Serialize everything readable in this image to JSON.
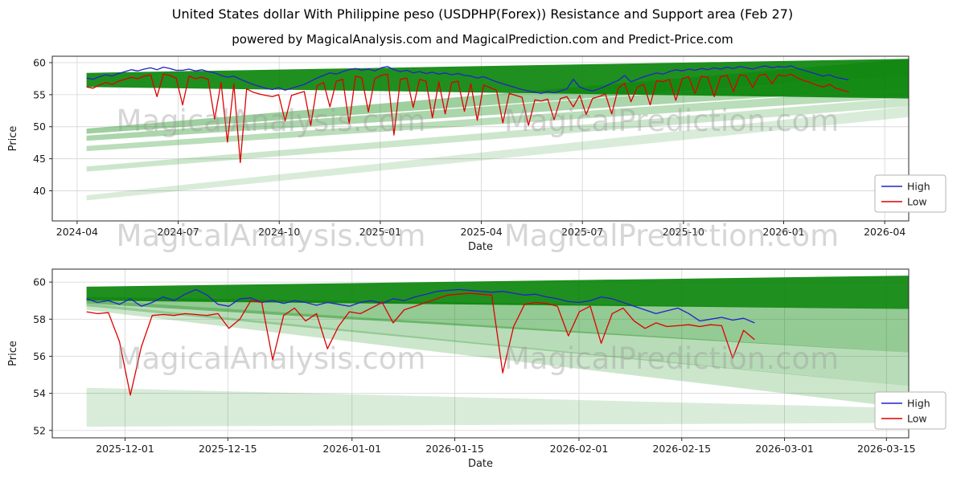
{
  "title": "United States dollar With Philippine peso (USDPHP(Forex)) Resistance and Support area (Feb 27)",
  "subtitle": "powered by MagicalAnalysis.com and MagicalPrediction.com and Predict-Price.com",
  "watermarks": {
    "left": "MagicalAnalysis.com",
    "right": "MagicalPrediction.com"
  },
  "colors": {
    "high": "#2222cc",
    "low": "#dd0000",
    "band": "#008000",
    "grid": "#d9d9d9",
    "frame": "#2a2a2a"
  },
  "chart_data": [
    {
      "type": "line",
      "xlabel": "Date",
      "ylabel": "Price",
      "ylim": [
        35.3,
        61.0
      ],
      "y_ticks": [
        40,
        45,
        50,
        55,
        60
      ],
      "x_ticks": [
        {
          "f": 0.029,
          "label": "2024-04"
        },
        {
          "f": 0.147,
          "label": "2024-07"
        },
        {
          "f": 0.265,
          "label": "2024-10"
        },
        {
          "f": 0.383,
          "label": "2025-01"
        },
        {
          "f": 0.501,
          "label": "2025-04"
        },
        {
          "f": 0.619,
          "label": "2025-07"
        },
        {
          "f": 0.737,
          "label": "2025-10"
        },
        {
          "f": 0.854,
          "label": "2026-01"
        },
        {
          "f": 0.972,
          "label": "2026-04"
        }
      ],
      "legend_position": "lower right",
      "bands": [
        {
          "points": [
            [
              0.04,
              38.5
            ],
            [
              0.04,
              39.3
            ],
            [
              1.0,
              53.2
            ],
            [
              1.0,
              51.5
            ]
          ],
          "opacity": 0.15
        },
        {
          "points": [
            [
              0.04,
              43.0
            ],
            [
              0.04,
              43.8
            ],
            [
              1.0,
              54.6
            ],
            [
              1.0,
              53.2
            ]
          ],
          "opacity": 0.2
        },
        {
          "points": [
            [
              0.04,
              46.2
            ],
            [
              0.04,
              47.0
            ],
            [
              1.0,
              56.0
            ],
            [
              1.0,
              54.6
            ]
          ],
          "opacity": 0.27
        },
        {
          "points": [
            [
              0.04,
              47.8
            ],
            [
              0.04,
              48.6
            ],
            [
              1.0,
              58.0
            ],
            [
              1.0,
              56.0
            ]
          ],
          "opacity": 0.33
        },
        {
          "points": [
            [
              0.04,
              48.9
            ],
            [
              0.04,
              49.7
            ],
            [
              1.0,
              60.6
            ],
            [
              1.0,
              58.0
            ]
          ],
          "opacity": 0.38
        },
        {
          "points": [
            [
              0.04,
              56.2
            ],
            [
              0.04,
              58.4
            ],
            [
              1.0,
              60.6
            ],
            [
              1.0,
              54.4
            ]
          ],
          "opacity": 0.88
        }
      ],
      "series": [
        {
          "name": "High",
          "color": "#2222cc",
          "x0": 0.04,
          "x1": 0.93,
          "values": [
            57.6,
            57.4,
            57.8,
            58.1,
            57.9,
            58.3,
            58.6,
            58.9,
            58.7,
            59.0,
            59.2,
            58.9,
            59.3,
            59.1,
            58.8,
            58.8,
            59.0,
            58.7,
            58.9,
            58.6,
            58.4,
            58.0,
            57.7,
            57.9,
            57.4,
            57.0,
            56.6,
            56.3,
            56.0,
            55.8,
            56.1,
            55.7,
            56.0,
            56.3,
            56.6,
            57.1,
            57.6,
            58.0,
            58.4,
            58.2,
            58.6,
            58.9,
            59.1,
            58.8,
            59.0,
            58.7,
            59.2,
            59.4,
            58.9,
            58.6,
            58.8,
            58.4,
            58.6,
            58.3,
            58.5,
            58.2,
            58.4,
            58.1,
            58.3,
            58.0,
            57.9,
            57.6,
            57.8,
            57.4,
            57.0,
            56.7,
            56.4,
            56.1,
            55.8,
            55.6,
            55.4,
            55.2,
            55.5,
            55.3,
            55.6,
            55.9,
            57.4,
            56.2,
            55.8,
            55.6,
            55.9,
            56.3,
            56.8,
            57.2,
            58.0,
            57.0,
            57.4,
            57.8,
            58.1,
            58.4,
            58.2,
            58.6,
            58.9,
            58.7,
            59.0,
            58.8,
            59.1,
            58.9,
            59.2,
            59.0,
            59.3,
            59.1,
            59.4,
            59.2,
            59.0,
            59.3,
            59.5,
            59.2,
            59.4,
            59.3,
            59.5,
            59.1,
            58.8,
            58.5,
            58.2,
            57.9,
            58.1,
            57.7,
            57.5,
            57.3
          ]
        },
        {
          "name": "Low",
          "color": "#dd0000",
          "x0": 0.04,
          "x1": 0.93,
          "values": [
            56.2,
            56.0,
            56.5,
            56.9,
            56.6,
            57.1,
            57.4,
            57.7,
            57.5,
            57.9,
            58.1,
            54.7,
            58.2,
            58.0,
            57.6,
            53.4,
            57.9,
            57.5,
            57.7,
            57.4,
            51.2,
            56.9,
            47.6,
            56.7,
            44.4,
            55.9,
            55.4,
            55.1,
            54.9,
            54.7,
            55.0,
            50.9,
            54.9,
            55.2,
            55.5,
            50.2,
            56.4,
            56.9,
            53.1,
            57.1,
            57.4,
            50.5,
            57.9,
            57.6,
            52.3,
            57.5,
            58.0,
            58.2,
            48.7,
            57.4,
            57.6,
            53.0,
            57.4,
            57.1,
            51.4,
            57.0,
            52.0,
            56.9,
            57.1,
            52.4,
            56.7,
            51.0,
            56.5,
            56.1,
            55.7,
            50.6,
            55.2,
            54.9,
            54.6,
            50.2,
            54.2,
            54.0,
            54.3,
            51.1,
            54.4,
            54.7,
            53.1,
            54.9,
            51.9,
            54.4,
            54.7,
            55.1,
            52.0,
            56.0,
            56.8,
            53.9,
            56.2,
            56.6,
            53.4,
            57.2,
            57.0,
            57.4,
            54.1,
            57.5,
            57.8,
            55.2,
            57.9,
            57.7,
            54.7,
            57.8,
            58.0,
            55.5,
            58.1,
            57.9,
            56.1,
            58.0,
            58.2,
            56.7,
            58.1,
            57.9,
            58.2,
            57.6,
            57.2,
            56.9,
            56.5,
            56.2,
            56.6,
            56.0,
            55.7,
            55.4
          ]
        }
      ]
    },
    {
      "type": "line",
      "xlabel": "Date",
      "ylabel": "Price",
      "ylim": [
        51.6,
        60.7
      ],
      "y_ticks": [
        52,
        54,
        56,
        58,
        60
      ],
      "x_ticks": [
        {
          "f": 0.085,
          "label": "2025-12-01"
        },
        {
          "f": 0.205,
          "label": "2025-12-15"
        },
        {
          "f": 0.35,
          "label": "2026-01-01"
        },
        {
          "f": 0.47,
          "label": "2026-01-15"
        },
        {
          "f": 0.615,
          "label": "2026-02-01"
        },
        {
          "f": 0.735,
          "label": "2026-02-15"
        },
        {
          "f": 0.855,
          "label": "2026-03-01"
        },
        {
          "f": 0.974,
          "label": "2026-03-15"
        }
      ],
      "legend_position": "lower right",
      "bands": [
        {
          "points": [
            [
              0.04,
              52.2
            ],
            [
              0.04,
              54.3
            ],
            [
              1.0,
              53.2
            ],
            [
              1.0,
              52.4
            ]
          ],
          "opacity": 0.15
        },
        {
          "points": [
            [
              0.04,
              58.5
            ],
            [
              0.04,
              58.85
            ],
            [
              1.0,
              54.4
            ],
            [
              1.0,
              53.2
            ]
          ],
          "opacity": 0.2
        },
        {
          "points": [
            [
              0.04,
              58.7
            ],
            [
              0.04,
              59.05
            ],
            [
              1.0,
              56.2
            ],
            [
              1.0,
              54.4
            ]
          ],
          "opacity": 0.28
        },
        {
          "points": [
            [
              0.04,
              58.85
            ],
            [
              0.04,
              59.2
            ],
            [
              1.0,
              58.55
            ],
            [
              1.0,
              56.2
            ]
          ],
          "opacity": 0.42
        },
        {
          "points": [
            [
              0.04,
              59.0
            ],
            [
              0.04,
              59.75
            ],
            [
              1.0,
              60.35
            ],
            [
              1.0,
              58.55
            ]
          ],
          "opacity": 0.88
        }
      ],
      "series": [
        {
          "name": "High",
          "color": "#2222cc",
          "x0": 0.04,
          "x1": 0.82,
          "values": [
            59.1,
            58.9,
            59.0,
            58.8,
            59.1,
            58.7,
            58.9,
            59.2,
            59.0,
            59.35,
            59.6,
            59.3,
            58.8,
            58.7,
            59.1,
            59.15,
            58.9,
            59.0,
            58.85,
            59.0,
            58.9,
            58.75,
            58.9,
            58.8,
            58.7,
            58.9,
            59.0,
            58.85,
            59.1,
            59.0,
            59.2,
            59.35,
            59.5,
            59.55,
            59.6,
            59.55,
            59.5,
            59.45,
            59.5,
            59.4,
            59.3,
            59.35,
            59.2,
            59.1,
            58.95,
            58.9,
            59.0,
            59.2,
            59.1,
            58.9,
            58.7,
            58.5,
            58.3,
            58.45,
            58.6,
            58.3,
            57.9,
            58.0,
            58.1,
            57.95,
            58.05,
            57.8
          ]
        },
        {
          "name": "Low",
          "color": "#dd0000",
          "x0": 0.04,
          "x1": 0.82,
          "values": [
            58.4,
            58.3,
            58.35,
            56.8,
            53.9,
            56.5,
            58.2,
            58.25,
            58.2,
            58.3,
            58.25,
            58.2,
            58.3,
            57.5,
            58.0,
            59.0,
            58.9,
            55.8,
            58.2,
            58.6,
            57.9,
            58.3,
            56.4,
            57.6,
            58.4,
            58.3,
            58.6,
            58.9,
            57.8,
            58.5,
            58.7,
            58.9,
            59.1,
            59.3,
            59.35,
            59.4,
            59.35,
            59.3,
            55.1,
            57.6,
            58.8,
            58.9,
            58.85,
            58.7,
            57.1,
            58.4,
            58.7,
            56.7,
            58.3,
            58.6,
            57.9,
            57.5,
            57.8,
            57.6,
            57.65,
            57.7,
            57.6,
            57.7,
            57.65,
            55.9,
            57.4,
            56.9
          ]
        }
      ]
    }
  ]
}
